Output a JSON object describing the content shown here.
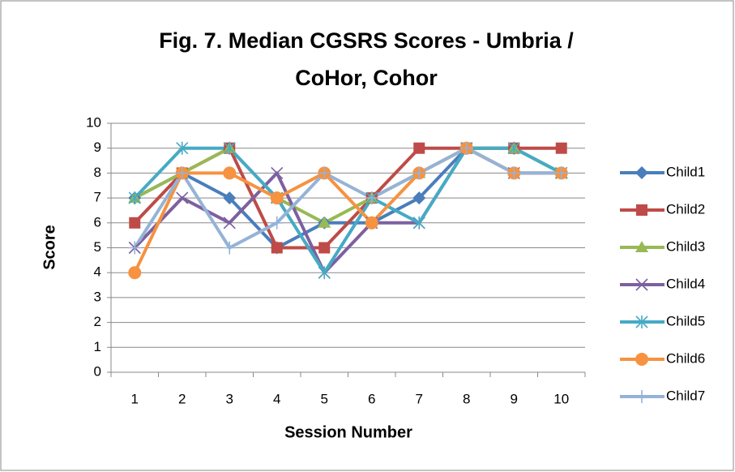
{
  "chart_data": {
    "type": "line",
    "title": [
      "Fig. 7. Median CGSRS Scores - Umbria /",
      "CoHor, Cohor"
    ],
    "x_label": "Session Number",
    "y_label": "Score",
    "categories": [
      "1",
      "2",
      "3",
      "4",
      "5",
      "6",
      "7",
      "8",
      "9",
      "10"
    ],
    "ylim": [
      0,
      10
    ],
    "yticks": [
      0,
      1,
      2,
      3,
      4,
      5,
      6,
      7,
      8,
      9,
      10
    ],
    "grid": true,
    "legend": "right",
    "series": [
      {
        "name": "Child1",
        "color": "#4a7ebb",
        "marker": "diamond",
        "values": [
          7,
          8,
          7,
          5,
          6,
          6,
          7,
          9,
          9,
          8
        ]
      },
      {
        "name": "Child2",
        "color": "#be4b48",
        "marker": "square",
        "values": [
          6,
          8,
          9,
          5,
          5,
          7,
          9,
          9,
          9,
          9
        ]
      },
      {
        "name": "Child3",
        "color": "#98b954",
        "marker": "triangle",
        "values": [
          7,
          8,
          9,
          7,
          6,
          7,
          8,
          9,
          9,
          8
        ]
      },
      {
        "name": "Child4",
        "color": "#7d60a0",
        "marker": "x",
        "values": [
          5,
          7,
          6,
          8,
          4,
          6,
          6,
          9,
          8,
          8
        ]
      },
      {
        "name": "Child5",
        "color": "#46aac5",
        "marker": "star",
        "values": [
          7,
          9,
          9,
          7,
          4,
          7,
          6,
          9,
          9,
          8
        ]
      },
      {
        "name": "Child6",
        "color": "#f69240",
        "marker": "circle",
        "values": [
          4,
          8,
          8,
          7,
          8,
          6,
          8,
          9,
          8,
          8
        ]
      },
      {
        "name": "Child7",
        "color": "#95b3d7",
        "marker": "plus",
        "values": [
          5,
          8,
          5,
          6,
          8,
          7,
          8,
          9,
          8,
          8
        ]
      }
    ]
  }
}
